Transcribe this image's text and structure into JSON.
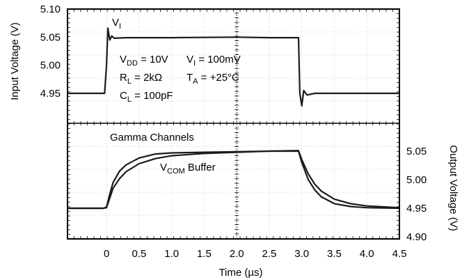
{
  "chart_data": {
    "type": "line",
    "title": "",
    "xlabel_text": "Time (",
    "xlabel_unit": "µs",
    "xlabel_close": ")",
    "ylabel_left": "Input Voltage (V)",
    "ylabel_right": "Output Voltage (V)",
    "xlim": [
      -0.6,
      4.5
    ],
    "x_ticks": [
      "0",
      "0.5",
      "1.0",
      "1.5",
      "2.0",
      "2.5",
      "3.0",
      "3.5",
      "4.0",
      "4.5"
    ],
    "y_left_ticks": [
      "5.10",
      "5.05",
      "5.00",
      "4.95"
    ],
    "y_right_ticks": [
      "5.05",
      "5.00",
      "4.95",
      "4.90"
    ],
    "annotations": {
      "vi_main": "V",
      "vi_sub": "I",
      "vdd_main": "V",
      "vdd_sub": "DD",
      "vdd_value": " = 10V",
      "vi2_main": "V",
      "vi2_sub": "I",
      "vi2_value": " = 100mV",
      "rl_main": "R",
      "rl_sub": "L",
      "rl_value": " = 2kΩ",
      "ta_main": "T",
      "ta_sub": "A",
      "ta_value": " = +25°C",
      "cl_main": "C",
      "cl_sub": "L",
      "cl_value": " = 100pF",
      "gamma": "Gamma Channels",
      "vcom_main": "V",
      "vcom_sub": "COM",
      "vcom_tail": " Buffer"
    },
    "series": [
      {
        "label": "V I (input)",
        "panel": "top",
        "axis": "left",
        "color": "#1a1a1a",
        "points": [
          [
            -0.6,
            4.95
          ],
          [
            -0.03,
            4.95
          ],
          [
            0.0,
            5.0
          ],
          [
            0.02,
            5.066
          ],
          [
            0.05,
            5.045
          ],
          [
            0.08,
            5.052
          ],
          [
            0.12,
            5.048
          ],
          [
            0.3,
            5.049
          ],
          [
            1.0,
            5.049
          ],
          [
            2.0,
            5.05
          ],
          [
            2.5,
            5.049
          ],
          [
            2.95,
            5.049
          ],
          [
            2.97,
            4.95
          ],
          [
            3.0,
            4.928
          ],
          [
            3.03,
            4.955
          ],
          [
            3.08,
            4.947
          ],
          [
            3.2,
            4.95
          ],
          [
            4.5,
            4.95
          ]
        ]
      },
      {
        "label": "Gamma Channels",
        "panel": "bottom",
        "axis": "right",
        "color": "#1a1a1a",
        "points": [
          [
            -0.6,
            4.95
          ],
          [
            -0.05,
            4.95
          ],
          [
            0.0,
            4.952
          ],
          [
            0.05,
            4.975
          ],
          [
            0.1,
            4.995
          ],
          [
            0.2,
            5.015
          ],
          [
            0.3,
            5.026
          ],
          [
            0.5,
            5.038
          ],
          [
            0.75,
            5.045
          ],
          [
            1.0,
            5.047
          ],
          [
            1.5,
            5.048
          ],
          [
            2.0,
            5.049
          ],
          [
            2.5,
            5.05
          ],
          [
            2.95,
            5.051
          ],
          [
            3.0,
            5.035
          ],
          [
            3.1,
            5.01
          ],
          [
            3.2,
            4.992
          ],
          [
            3.3,
            4.98
          ],
          [
            3.5,
            4.966
          ],
          [
            3.75,
            4.958
          ],
          [
            4.0,
            4.954
          ],
          [
            4.5,
            4.951
          ]
        ]
      },
      {
        "label": "VCOM Buffer",
        "panel": "bottom",
        "axis": "right",
        "color": "#1a1a1a",
        "points": [
          [
            -0.6,
            4.95
          ],
          [
            -0.05,
            4.95
          ],
          [
            0.0,
            4.951
          ],
          [
            0.05,
            4.968
          ],
          [
            0.1,
            4.985
          ],
          [
            0.2,
            5.002
          ],
          [
            0.3,
            5.014
          ],
          [
            0.5,
            5.028
          ],
          [
            0.75,
            5.037
          ],
          [
            1.0,
            5.042
          ],
          [
            1.5,
            5.046
          ],
          [
            2.0,
            5.048
          ],
          [
            2.5,
            5.05
          ],
          [
            2.95,
            5.05
          ],
          [
            3.0,
            5.03
          ],
          [
            3.1,
            5.0
          ],
          [
            3.2,
            4.982
          ],
          [
            3.3,
            4.97
          ],
          [
            3.5,
            4.958
          ],
          [
            3.75,
            4.953
          ],
          [
            4.0,
            4.951
          ],
          [
            4.5,
            4.95
          ]
        ]
      }
    ]
  }
}
